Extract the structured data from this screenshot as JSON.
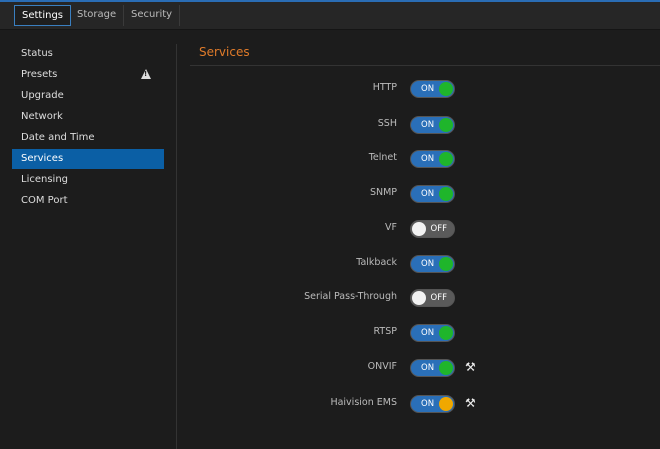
{
  "tabs": [
    {
      "label": "Settings",
      "active": true
    },
    {
      "label": "Storage"
    },
    {
      "label": "Security"
    }
  ],
  "sidebar": {
    "items": [
      {
        "label": "Status"
      },
      {
        "label": "Presets",
        "icon": "warning-icon"
      },
      {
        "label": "Upgrade"
      },
      {
        "label": "Network"
      },
      {
        "label": "Date and Time"
      },
      {
        "label": "Services",
        "active": true
      },
      {
        "label": "Licensing"
      },
      {
        "label": "COM Port"
      }
    ]
  },
  "main": {
    "title": "Services",
    "services": [
      {
        "label": "HTTP",
        "state": "ON",
        "knob_color": "#1fb52b"
      },
      {
        "label": "SSH",
        "state": "ON",
        "knob_color": "#1fb52b"
      },
      {
        "label": "Telnet",
        "state": "ON",
        "knob_color": "#1fb52b"
      },
      {
        "label": "SNMP",
        "state": "ON",
        "knob_color": "#1fb52b"
      },
      {
        "label": "VF",
        "state": "OFF"
      },
      {
        "label": "Talkback",
        "state": "ON",
        "knob_color": "#1fb52b"
      },
      {
        "label": "Serial Pass-Through",
        "state": "OFF"
      },
      {
        "label": "RTSP",
        "state": "ON",
        "knob_color": "#1fb52b"
      },
      {
        "label": "ONVIF",
        "state": "ON",
        "knob_color": "#1fb52b",
        "settings_icon": "wrench-icon"
      },
      {
        "label": "Haivision EMS",
        "state": "ON",
        "knob_color": "#f0a800",
        "settings_icon": "wrench-icon"
      }
    ]
  },
  "colors": {
    "accent": "#0b5fa5",
    "title": "#e07b2a"
  }
}
